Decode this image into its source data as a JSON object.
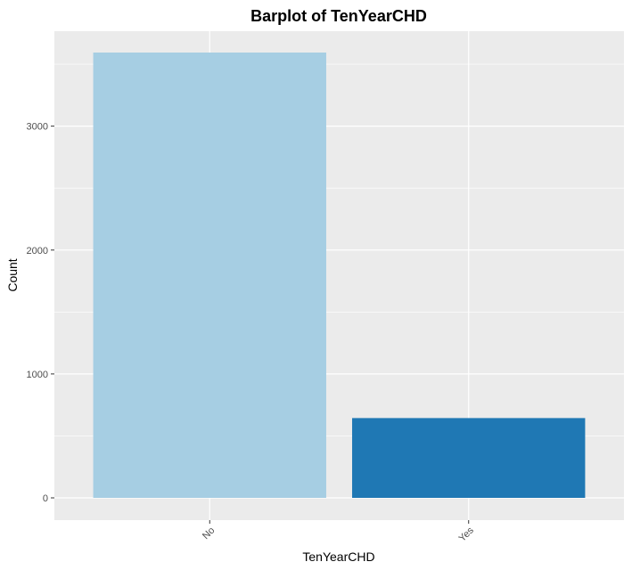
{
  "chart_data": {
    "type": "bar",
    "title": "Barplot of TenYearCHD",
    "xlabel": "TenYearCHD",
    "ylabel": "Count",
    "categories": [
      "No",
      "Yes"
    ],
    "values": [
      3594,
      644
    ],
    "colors": [
      "#a6cee3",
      "#1f78b4"
    ],
    "ylim": [
      0,
      3594
    ],
    "yticks": [
      0,
      1000,
      2000,
      3000
    ],
    "ytick_labels": [
      "0",
      "1000",
      "2000",
      "3000"
    ],
    "grid": true,
    "legend": "none",
    "panel_background": "#ebebeb",
    "grid_color": "#ffffff"
  }
}
